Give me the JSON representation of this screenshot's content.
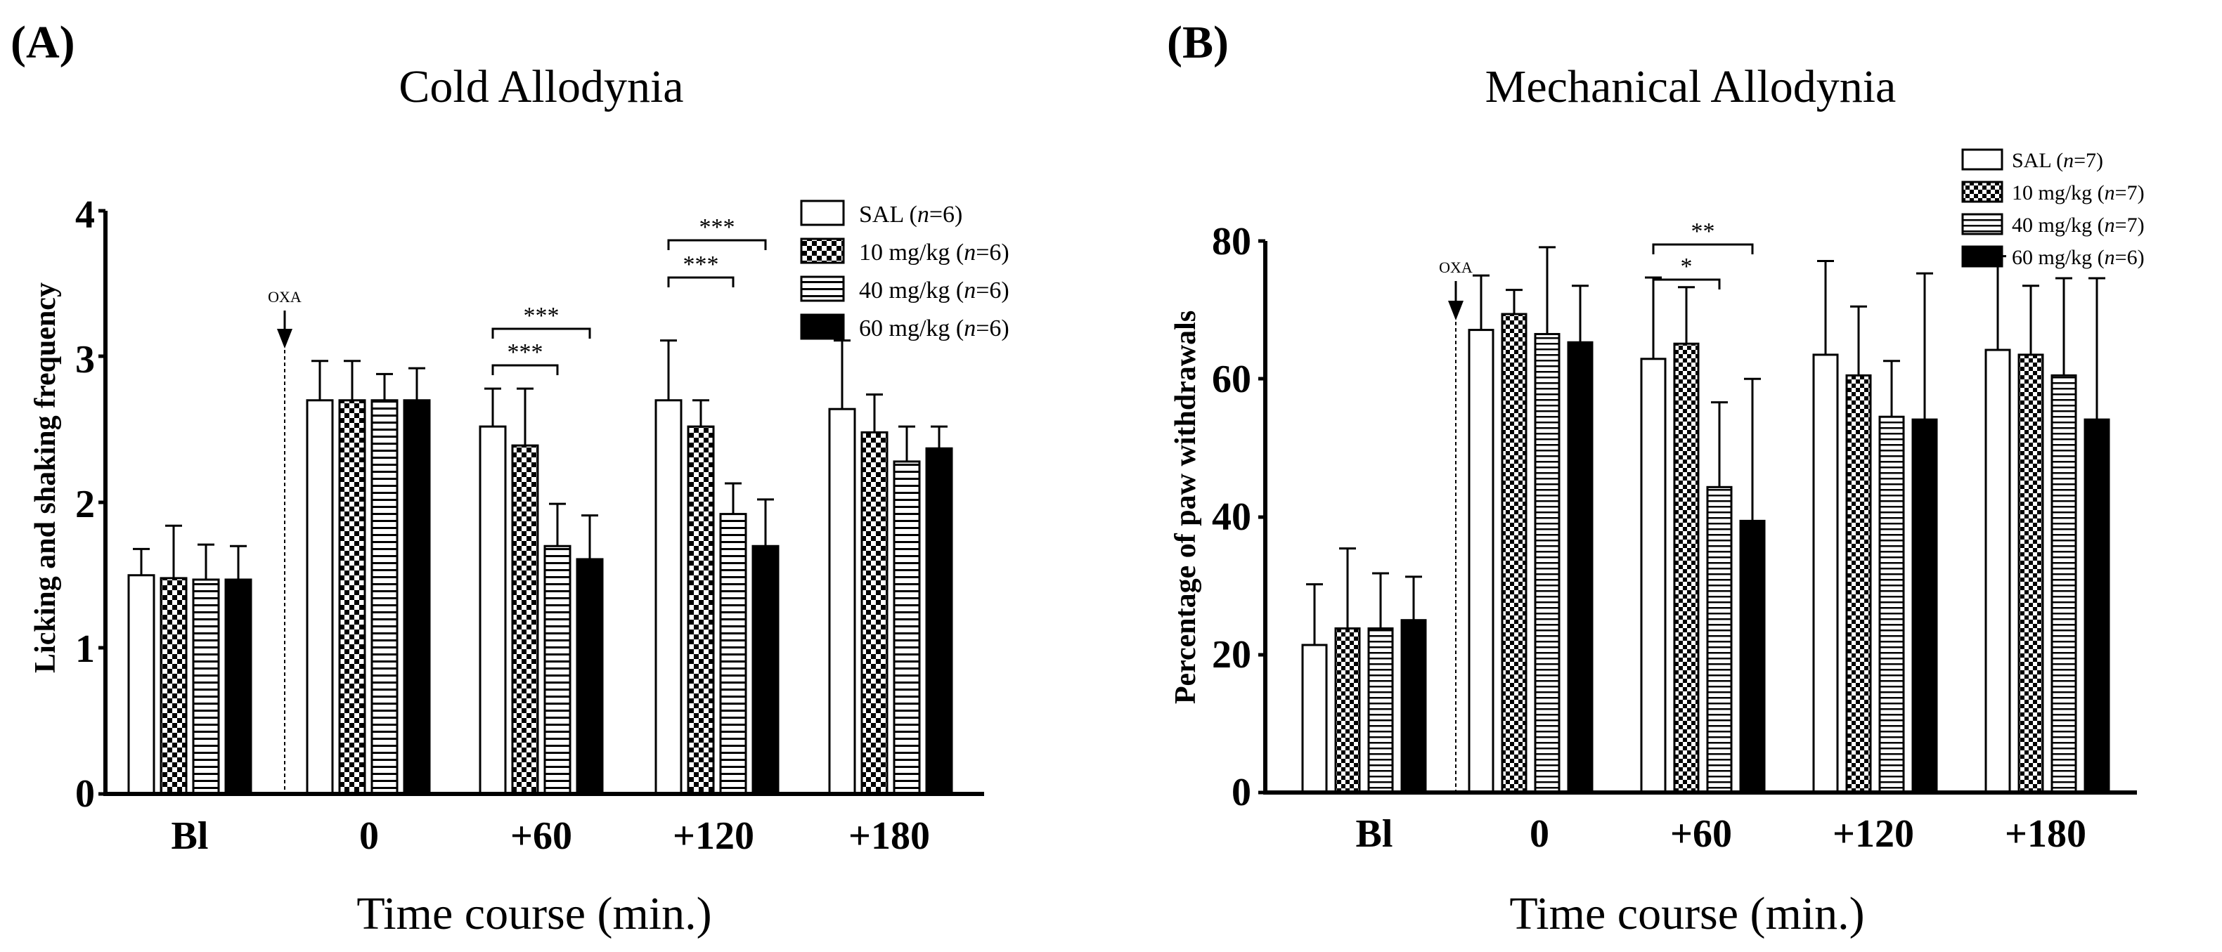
{
  "chart_data": [
    {
      "panel": "(A)",
      "type": "bar",
      "title": "Cold Allodynia",
      "xlabel": "Time course (min.)",
      "ylabel": "Licking and shaking frequency",
      "ylim": [
        0,
        4
      ],
      "yticks": [
        0,
        1,
        2,
        3,
        4
      ],
      "categories": [
        "Bl",
        "0",
        "+60",
        "+120",
        "+180"
      ],
      "series": [
        {
          "name": "SAL",
          "n": "n",
          "n_value": "=6)",
          "pattern": "white",
          "values": [
            1.5,
            2.7,
            2.52,
            2.7,
            2.64
          ],
          "errors": [
            0.18,
            0.27,
            0.26,
            0.41,
            0.47
          ]
        },
        {
          "name": "10 mg/kg",
          "n": "n",
          "n_value": "=6)",
          "pattern": "checker",
          "values": [
            1.48,
            2.7,
            2.39,
            2.52,
            2.48
          ],
          "errors": [
            0.36,
            0.27,
            0.39,
            0.18,
            0.26
          ]
        },
        {
          "name": "40 mg/kg",
          "n": "n",
          "n_value": "=6)",
          "pattern": "hlines",
          "values": [
            1.47,
            2.7,
            1.7,
            1.92,
            2.28
          ],
          "errors": [
            0.24,
            0.18,
            0.29,
            0.21,
            0.24
          ]
        },
        {
          "name": "60 mg/kg",
          "n": "n",
          "n_value": "=6)",
          "pattern": "black",
          "values": [
            1.47,
            2.7,
            1.61,
            1.7,
            2.37
          ],
          "errors": [
            0.23,
            0.22,
            0.3,
            0.32,
            0.15
          ]
        }
      ],
      "annotation": "OXA",
      "significance": [
        {
          "category": "+60",
          "from": 0,
          "to": 3,
          "label": "***"
        },
        {
          "category": "+60",
          "from": 0,
          "to": 2,
          "label": "***"
        },
        {
          "category": "+120",
          "from": 0,
          "to": 3,
          "label": "***"
        },
        {
          "category": "+120",
          "from": 0,
          "to": 2,
          "label": "***"
        }
      ]
    },
    {
      "panel": "(B)",
      "type": "bar",
      "title": "Mechanical Allodynia",
      "xlabel": "Time course (min.)",
      "ylabel": "Percentage of paw withdrawals",
      "ylim": [
        0,
        80
      ],
      "yticks": [
        0,
        20,
        40,
        60,
        80
      ],
      "categories": [
        "Bl",
        "0",
        "+60",
        "+120",
        "+180"
      ],
      "series": [
        {
          "name": "SAL",
          "n": "n",
          "n_value": "=7)",
          "pattern": "white",
          "values": [
            21.4,
            67.1,
            62.9,
            63.5,
            64.2
          ],
          "errors": [
            8.8,
            7.9,
            11.8,
            13.6,
            13.6
          ]
        },
        {
          "name": "10 mg/kg",
          "n": "n",
          "n_value": "=7)",
          "pattern": "checker",
          "values": [
            23.8,
            69.4,
            65.1,
            60.5,
            63.5
          ],
          "errors": [
            11.6,
            3.5,
            8.2,
            10.0,
            10.0
          ]
        },
        {
          "name": "40 mg/kg",
          "n": "n",
          "n_value": "=7)",
          "pattern": "hlines",
          "values": [
            23.8,
            66.5,
            44.3,
            54.5,
            60.5
          ],
          "errors": [
            8.0,
            12.6,
            12.3,
            8.1,
            14.1
          ]
        },
        {
          "name": "60 mg/kg",
          "n": "n",
          "n_value": "=6)",
          "pattern": "black",
          "values": [
            25.0,
            65.3,
            39.4,
            54.1,
            54.1
          ],
          "errors": [
            6.3,
            8.2,
            20.6,
            21.2,
            20.5
          ]
        }
      ],
      "annotation": "OXA",
      "significance": [
        {
          "category": "+60",
          "from": 0,
          "to": 3,
          "label": "**"
        },
        {
          "category": "+60",
          "from": 0,
          "to": 2,
          "label": "*"
        }
      ]
    }
  ]
}
